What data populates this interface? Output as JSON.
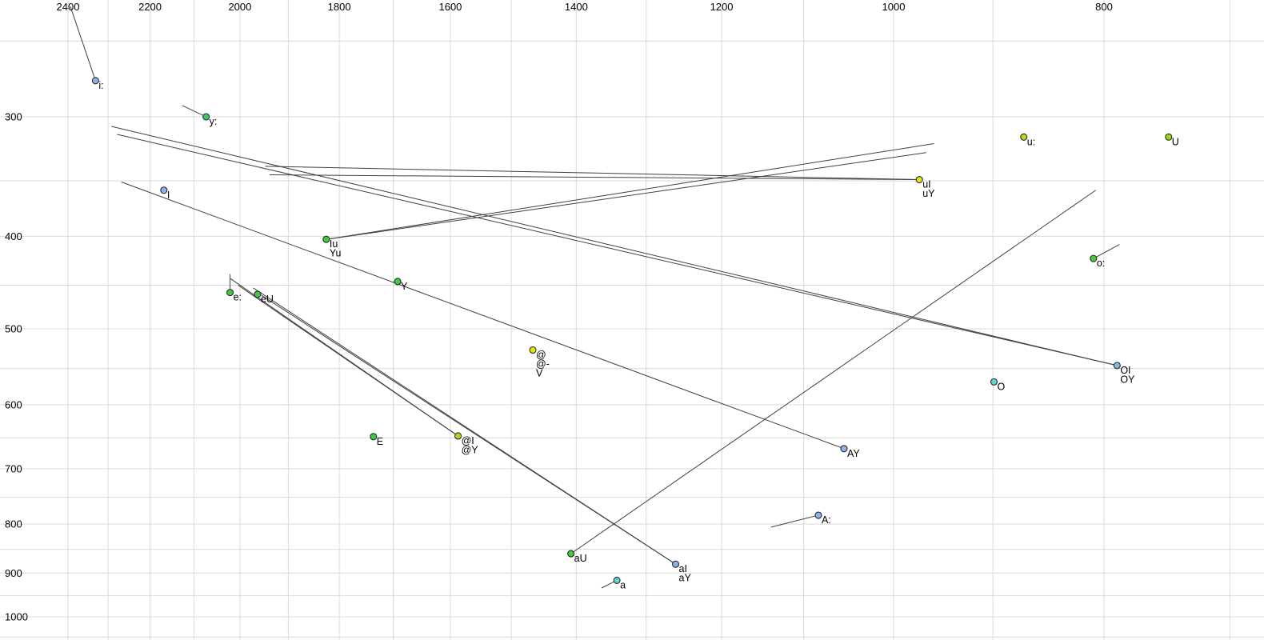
{
  "chart_data": {
    "type": "scatter",
    "description": "Vowel formant chart (F2 horizontal, decreasing to the right; F1 vertical, increasing downward; log-log scale) with monophthong points and diphthong trajectory lines",
    "x_axis": {
      "tick_labels": [
        "2400",
        "2200",
        "2000",
        "1800",
        "1600",
        "1400",
        "1200",
        "1000",
        "800"
      ],
      "tick_values": [
        2400,
        2200,
        2000,
        1800,
        1600,
        1400,
        1200,
        1000,
        800
      ],
      "grid_values": [
        2400,
        2300,
        2200,
        2100,
        2000,
        1900,
        1800,
        1700,
        1600,
        1500,
        1400,
        1300,
        1200,
        1100,
        1000,
        900,
        800,
        700
      ],
      "scale": "log",
      "direction": "decreasing-right",
      "range": [
        2580,
        675
      ]
    },
    "y_axis": {
      "tick_labels": [
        "300",
        "400",
        "500",
        "600",
        "700",
        "800",
        "900",
        "1000"
      ],
      "tick_values": [
        300,
        400,
        500,
        600,
        700,
        800,
        900,
        1000
      ],
      "grid_values": [
        250,
        300,
        350,
        400,
        450,
        500,
        550,
        600,
        650,
        700,
        750,
        800,
        850,
        900,
        950,
        1000,
        1050
      ],
      "scale": "log",
      "direction": "increasing-down",
      "range": [
        226,
        1060
      ]
    },
    "points": [
      {
        "labels": [
          "i:"
        ],
        "f2": 2331,
        "f1": 275,
        "color": "#8ab4e8"
      },
      {
        "labels": [
          "y:"
        ],
        "f2": 2073,
        "f1": 300,
        "color": "#3ecc5e"
      },
      {
        "labels": [
          "u:"
        ],
        "f2": 871,
        "f1": 315,
        "color": "#b4d818"
      },
      {
        "labels": [
          "U"
        ],
        "f2": 747,
        "f1": 315,
        "color": "#9ad818"
      },
      {
        "labels": [
          "uI",
          "uY"
        ],
        "f2": 973,
        "f1": 349,
        "color": "#e4e414"
      },
      {
        "labels": [
          "I"
        ],
        "f2": 2168,
        "f1": 358,
        "color": "#8ab4e8"
      },
      {
        "labels": [
          "Iu",
          "Yu"
        ],
        "f2": 1825,
        "f1": 403,
        "color": "#3ecc3e"
      },
      {
        "labels": [
          "o:"
        ],
        "f2": 809,
        "f1": 422,
        "color": "#3ecc3e"
      },
      {
        "labels": [
          "e:"
        ],
        "f2": 2021,
        "f1": 458,
        "color": "#3ecc3e"
      },
      {
        "labels": [
          "eU"
        ],
        "f2": 1963,
        "f1": 460,
        "color": "#3ecc3e"
      },
      {
        "labels": [
          "Y"
        ],
        "f2": 1692,
        "f1": 446,
        "color": "#3ecc3e"
      },
      {
        "labels": [
          "@",
          "@-",
          "V"
        ],
        "f2": 1466,
        "f1": 526,
        "color": "#e4e414"
      },
      {
        "labels": [
          "OI",
          "OY"
        ],
        "f2": 789,
        "f1": 546,
        "color": "#7fb8e0"
      },
      {
        "labels": [
          "O"
        ],
        "f2": 899,
        "f1": 568,
        "color": "#66cfcf"
      },
      {
        "labels": [
          "E"
        ],
        "f2": 1736,
        "f1": 648,
        "color": "#3ecc3e"
      },
      {
        "labels": [
          "@I",
          "@Y"
        ],
        "f2": 1587,
        "f1": 647,
        "color": "#b4d818"
      },
      {
        "labels": [
          "AY"
        ],
        "f2": 1054,
        "f1": 667,
        "color": "#8ab4e8"
      },
      {
        "labels": [
          "A:"
        ],
        "f2": 1083,
        "f1": 783,
        "color": "#8ab4e8"
      },
      {
        "labels": [
          "aU"
        ],
        "f2": 1408,
        "f1": 859,
        "color": "#3ecc3e"
      },
      {
        "labels": [
          "aI",
          "aY"
        ],
        "f2": 1260,
        "f1": 881,
        "color": "#8ab4e8"
      },
      {
        "labels": [
          "a"
        ],
        "f2": 1341,
        "f1": 916,
        "color": "#66cfcf"
      }
    ],
    "trajectories": [
      {
        "vowel": "i:",
        "from": [
          2394,
          230
        ],
        "to": [
          2331,
          275
        ]
      },
      {
        "vowel": "y:",
        "from": [
          2126,
          292
        ],
        "to": [
          2073,
          300
        ]
      },
      {
        "vowel": "uI",
        "from": [
          1947,
          338
        ],
        "to": [
          973,
          349
        ]
      },
      {
        "vowel": "uY",
        "from": [
          1938,
          345
        ],
        "to": [
          973,
          349
        ]
      },
      {
        "vowel": "Iu",
        "from": [
          1825,
          403
        ],
        "to": [
          958,
          320
        ]
      },
      {
        "vowel": "Yu",
        "from": [
          1825,
          403
        ],
        "to": [
          966,
          327
        ]
      },
      {
        "vowel": "OI",
        "from": [
          2292,
          307
        ],
        "to": [
          789,
          546
        ]
      },
      {
        "vowel": "OY",
        "from": [
          2278,
          313
        ],
        "to": [
          789,
          546
        ]
      },
      {
        "vowel": "AY",
        "from": [
          2268,
          351
        ],
        "to": [
          1054,
          667
        ]
      },
      {
        "vowel": "@I",
        "from": [
          2020,
          443
        ],
        "to": [
          1587,
          647
        ]
      },
      {
        "vowel": "@Y",
        "from": [
          2004,
          450
        ],
        "to": [
          1587,
          647
        ]
      },
      {
        "vowel": "aI",
        "from": [
          1972,
          453
        ],
        "to": [
          1260,
          881
        ]
      },
      {
        "vowel": "aY",
        "from": [
          1955,
          461
        ],
        "to": [
          1260,
          881
        ]
      },
      {
        "vowel": "aU",
        "from": [
          807,
          358
        ],
        "to": [
          1408,
          859
        ]
      },
      {
        "vowel": "A:",
        "from": [
          1139,
          806
        ],
        "to": [
          1083,
          783
        ]
      },
      {
        "vowel": "a",
        "from": [
          1363,
          933
        ],
        "to": [
          1341,
          916
        ]
      },
      {
        "vowel": "o:",
        "from": [
          787,
          408
        ],
        "to": [
          809,
          422
        ]
      },
      {
        "vowel": "e:",
        "from": [
          2021,
          438
        ],
        "to": [
          2021,
          458
        ]
      }
    ],
    "colors": {
      "grid": "#d9d9d9",
      "trajectory_line": "#404040",
      "point_stroke": "#2a2a2a",
      "background": "#ffffff",
      "text": "#000000"
    }
  }
}
